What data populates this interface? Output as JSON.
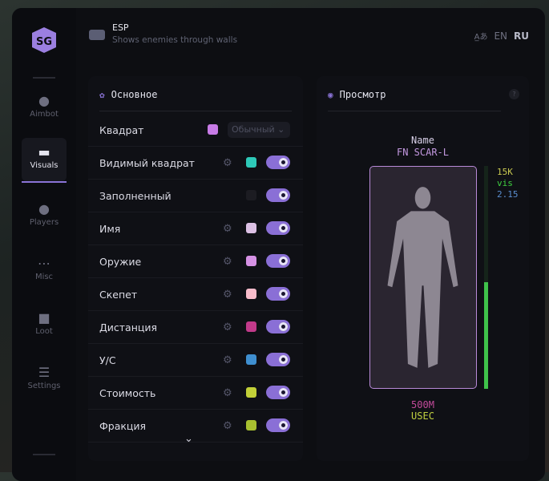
{
  "header": {
    "title": "ESP",
    "subtitle": "Shows enemies through walls",
    "icon": "vr-goggles-icon",
    "lang_icon": "translate-icon",
    "lang_en": "EN",
    "lang_ru": "RU"
  },
  "sidebar": {
    "items": [
      {
        "label": "Aimbot",
        "icon": "alien-icon"
      },
      {
        "label": "Visuals",
        "icon": "vr-goggles-icon",
        "active": true
      },
      {
        "label": "Players",
        "icon": "users-icon"
      },
      {
        "label": "Misc",
        "icon": "dots-icon"
      },
      {
        "label": "Loot",
        "icon": "toolbox-icon"
      },
      {
        "label": "Settings",
        "icon": "list-icon"
      }
    ]
  },
  "main_panel": {
    "title": "Основное",
    "select_value": "Обычный",
    "rows": [
      {
        "label": "Квадрат",
        "color": "#c77be6",
        "gear": false,
        "toggle": null
      },
      {
        "label": "Видимый квадрат",
        "color": "#2ec9b8",
        "gear": true,
        "toggle": true
      },
      {
        "label": "Заполненный",
        "color": "#1c1c22",
        "gear": false,
        "toggle": true
      },
      {
        "label": "Имя",
        "color": "#dcc0e4",
        "gear": true,
        "toggle": true
      },
      {
        "label": "Оружие",
        "color": "#d591e4",
        "gear": true,
        "toggle": true
      },
      {
        "label": "Скепет",
        "color": "#f8bccb",
        "gear": true,
        "toggle": true
      },
      {
        "label": "Дистанция",
        "color": "#c23a8a",
        "gear": true,
        "toggle": true
      },
      {
        "label": "У/С",
        "color": "#3f8fd0",
        "gear": true,
        "toggle": true
      },
      {
        "label": "Стоимость",
        "color": "#c2d038",
        "gear": true,
        "toggle": true
      },
      {
        "label": "Фракция",
        "color": "#a8c030",
        "gear": true,
        "toggle": true
      }
    ]
  },
  "preview": {
    "title": "Просмотр",
    "help": "?",
    "name": "Name",
    "weapon": "FN SCAR-L",
    "value": "15K",
    "visible": "vis",
    "kd": "2.15",
    "distance": "500M",
    "faction": "USEC",
    "health_percent": 48
  }
}
